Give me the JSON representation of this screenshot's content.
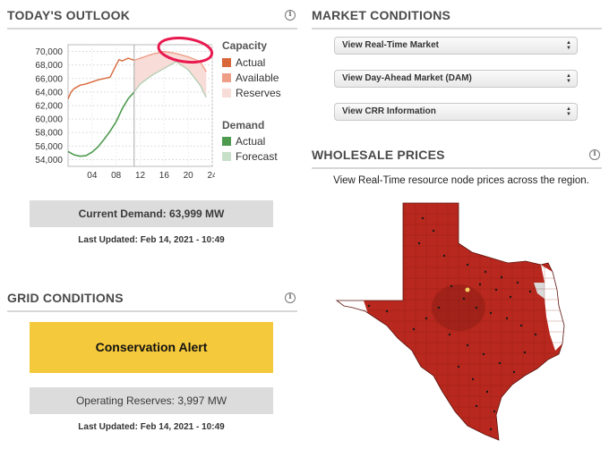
{
  "outlook": {
    "title": "TODAY'S OUTLOOK",
    "current_demand": "Current Demand: 63,999 MW",
    "last_updated": "Last Updated: Feb 14, 2021 - 10:49",
    "legend": {
      "capacity_title": "Capacity",
      "demand_title": "Demand",
      "items": [
        {
          "label": "Actual",
          "color": "#d9673a"
        },
        {
          "label": "Available",
          "color": "#ee9e86"
        },
        {
          "label": "Reserves",
          "color": "#f8dcd7"
        },
        {
          "label": "Actual",
          "color": "#4e9a4f"
        },
        {
          "label": "Forecast",
          "color": "#c8dfc8"
        }
      ]
    },
    "annotation_color": "#e8194f"
  },
  "chart_data": {
    "type": "line",
    "x_ticks": [
      "04",
      "08",
      "12",
      "16",
      "20",
      "24"
    ],
    "y_ticks": [
      "54,000",
      "56,000",
      "58,000",
      "60,000",
      "62,000",
      "64,000",
      "66,000",
      "68,000",
      "70,000"
    ],
    "xlim": [
      0,
      24
    ],
    "ylim": [
      53000,
      71000
    ],
    "series": [
      {
        "name": "Capacity Actual",
        "color": "#d9673a",
        "x": [
          0,
          0.5,
          1,
          2,
          3,
          4,
          5,
          6,
          7,
          8,
          8.5,
          9,
          10,
          11
        ],
        "y": [
          63000,
          64000,
          64500,
          65000,
          65200,
          65500,
          65800,
          66000,
          66200,
          68000,
          68800,
          68600,
          69000,
          68700
        ]
      },
      {
        "name": "Capacity Available",
        "color": "#ee9e86",
        "x": [
          11,
          12,
          14,
          16,
          18,
          20,
          22,
          23
        ],
        "y": [
          68700,
          69000,
          69600,
          70000,
          69700,
          69200,
          68500,
          67000
        ]
      },
      {
        "name": "Reserves",
        "color": "#f8dcd7",
        "x": [
          11,
          12,
          14,
          16,
          18,
          20,
          22,
          23
        ],
        "y_top": [
          68700,
          69000,
          69600,
          70000,
          69700,
          69200,
          68500,
          67000
        ],
        "y_bottom": [
          64000,
          65200,
          66500,
          67500,
          68500,
          67300,
          65000,
          63200
        ]
      },
      {
        "name": "Demand Actual",
        "color": "#4e9a4f",
        "x": [
          0,
          1,
          2,
          3,
          4,
          5,
          6,
          7,
          8,
          9,
          10,
          11
        ],
        "y": [
          55200,
          54700,
          54500,
          54600,
          55100,
          55900,
          57000,
          58200,
          59600,
          61500,
          63000,
          64000
        ]
      },
      {
        "name": "Demand Forecast",
        "color": "#b5cfb5",
        "x": [
          11,
          12,
          14,
          16,
          18,
          20,
          22,
          23
        ],
        "y": [
          64000,
          65200,
          66500,
          67500,
          68500,
          67300,
          65000,
          63200
        ]
      }
    ],
    "now_marker_x": 11,
    "grid": true
  },
  "grid_conditions": {
    "title": "GRID CONDITIONS",
    "alert": "Conservation Alert",
    "alert_color": "#f5c93c",
    "operating_reserves": "Operating Reserves: 3,997 MW",
    "last_updated": "Last Updated: Feb 14, 2021 - 10:49"
  },
  "market": {
    "title": "MARKET CONDITIONS",
    "buttons": [
      "View Real-Time Market",
      "View Day-Ahead Market (DAM)",
      "View CRR Information"
    ]
  },
  "wholesale": {
    "title": "WHOLESALE PRICES",
    "caption": "View Real-Time resource node prices across the region.",
    "map_color": "#b8281e"
  }
}
